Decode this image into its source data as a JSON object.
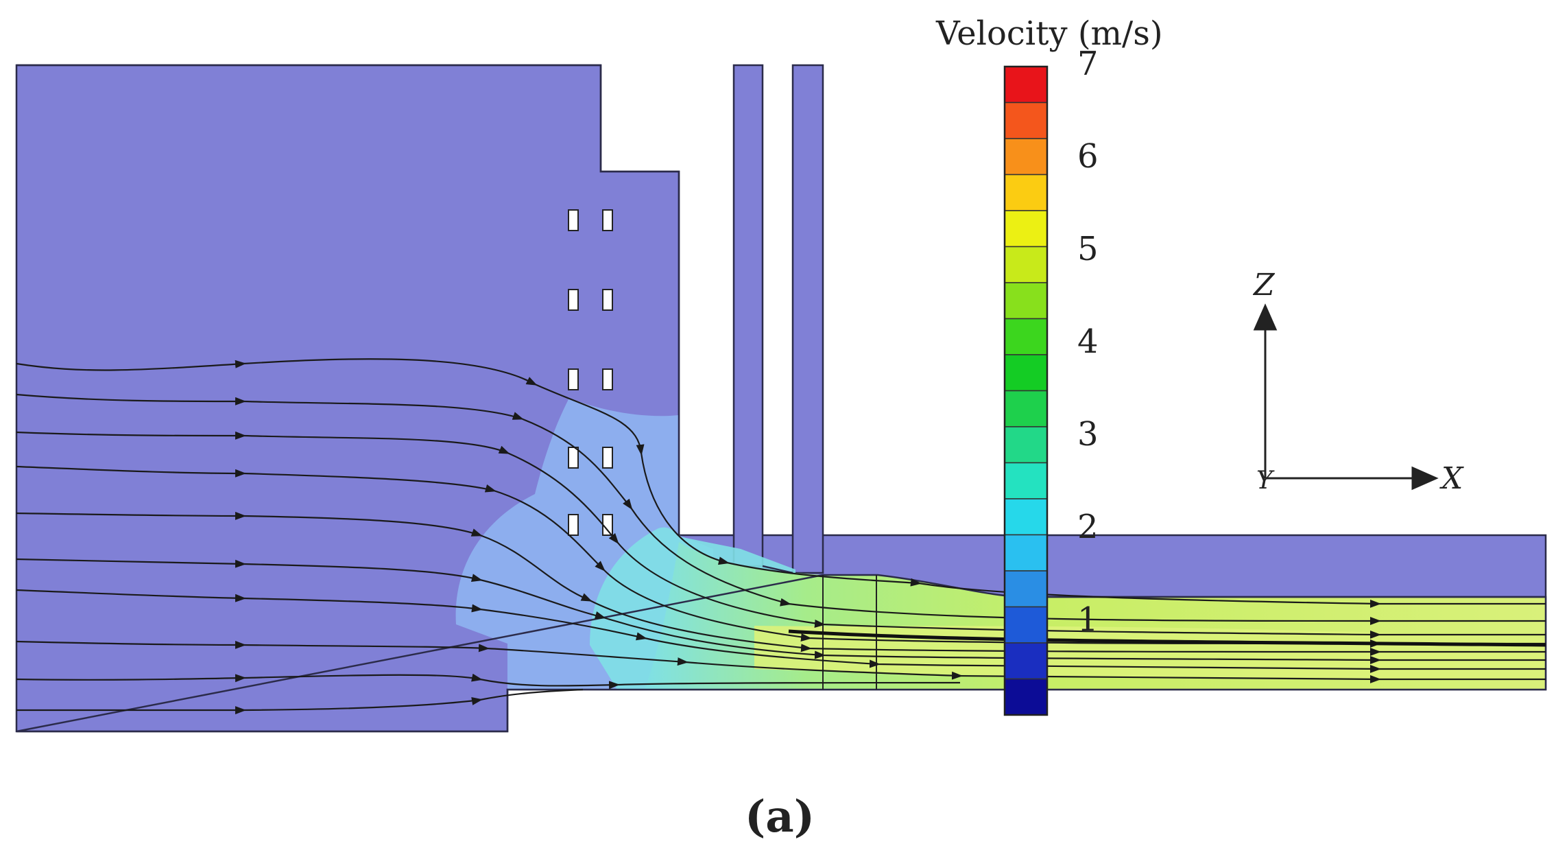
{
  "figure": {
    "panel_label": "(a)",
    "legend": {
      "title": "Velocity (m/s)",
      "ticks": [
        "7",
        "6",
        "5",
        "4",
        "3",
        "2",
        "1"
      ],
      "colors": [
        "#e8141a",
        "#f4561c",
        "#f8901a",
        "#fbcc12",
        "#ecf013",
        "#c8ea1a",
        "#88e01c",
        "#3cd61e",
        "#14cc24",
        "#1ed04c",
        "#22d888",
        "#24e2c0",
        "#26d8ea",
        "#2ac0f0",
        "#2a8ee4",
        "#1e5ad8",
        "#1a2ec0",
        "#0c0c96"
      ],
      "range": [
        0,
        7
      ]
    },
    "axes": {
      "vertical_label": "Z",
      "horizontal_label": "X",
      "origin_label": "Y"
    },
    "colors": {
      "domain_fill": "#8080d6",
      "domain_stroke": "#2b2b4a",
      "low_velocity": "#8fb6f2",
      "mid_velocity": "#7fe0e6",
      "high_velocity": "#c8ee66",
      "streamline": "#1a1a1a"
    }
  }
}
